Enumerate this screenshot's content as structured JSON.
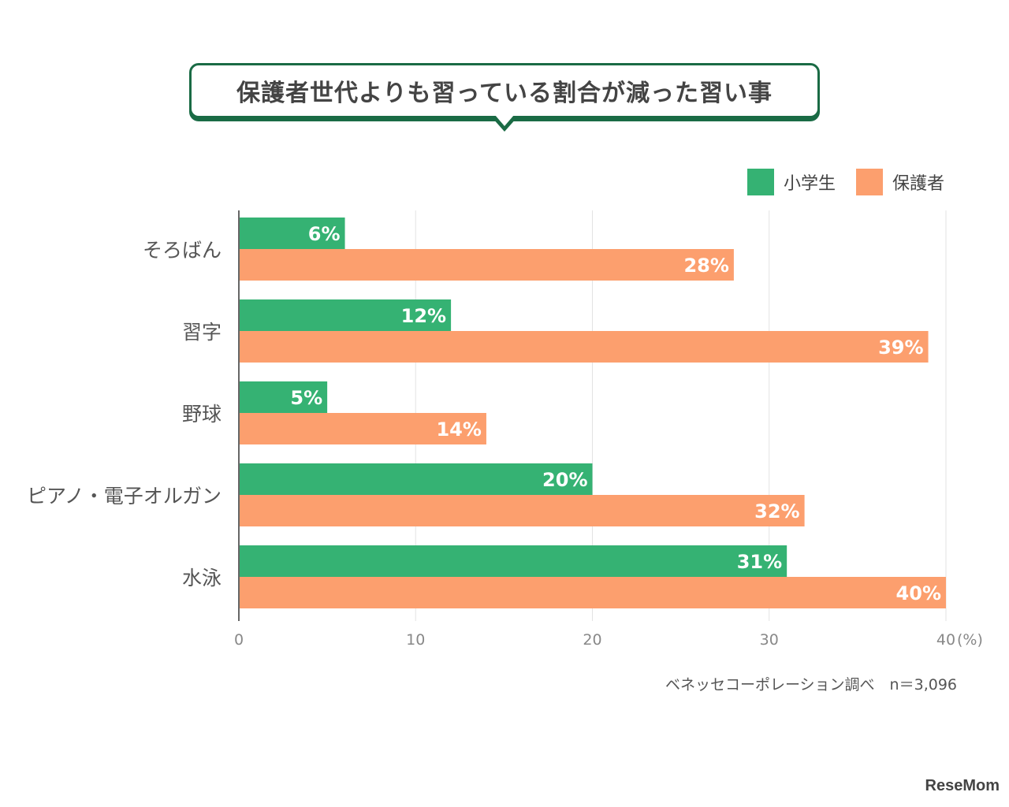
{
  "header": {
    "title": "保護者世代よりも習っている割合が減った習い事"
  },
  "colors": {
    "primary_series": "#35b273",
    "secondary_series": "#fc9f6e",
    "title_border": "#1a6b45"
  },
  "chart_data": {
    "type": "bar",
    "orientation": "horizontal",
    "title": "保護者世代よりも習っている割合が減った習い事",
    "categories": [
      "そろばん",
      "習字",
      "野球",
      "ピアノ・電子オルガン",
      "水泳"
    ],
    "series": [
      {
        "name": "小学生",
        "values": [
          6,
          12,
          5,
          20,
          31
        ],
        "labels": [
          "6%",
          "12%",
          "5%",
          "20%",
          "31%"
        ],
        "color": "#35b273"
      },
      {
        "name": "保護者",
        "values": [
          28,
          39,
          14,
          32,
          40
        ],
        "labels": [
          "28%",
          "39%",
          "14%",
          "32%",
          "40%"
        ],
        "color": "#fc9f6e"
      }
    ],
    "xlim": [
      0,
      40
    ],
    "xticks": [
      "0",
      "10",
      "20",
      "30",
      "40"
    ],
    "xunit": "(%)",
    "grid": true,
    "legend_position": "top-right"
  },
  "footer": {
    "source": "ベネッセコーポレーション調べ　n＝3,096",
    "logo": "ReseMom"
  }
}
